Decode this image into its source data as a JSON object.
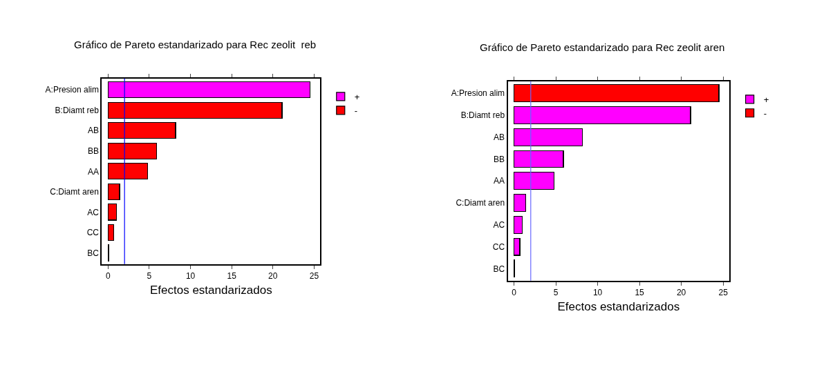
{
  "chart_data": [
    {
      "type": "bar",
      "orientation": "horizontal",
      "stacked": true,
      "title": "Gráfico de Pareto estandarizado para Rec zeolit  reb",
      "xlabel": "Efectos estandarizados",
      "categories": [
        "A:Presion alim",
        "B:Diamt reb",
        "AB",
        "BB",
        "AA",
        "C:Diamt aren",
        "AC",
        "CC",
        "BC"
      ],
      "series": [
        {
          "name": "+",
          "color": "#ff00ff",
          "values": [
            24.5,
            null,
            null,
            null,
            null,
            null,
            null,
            null,
            null
          ]
        },
        {
          "name": "-",
          "color": "#ff0000",
          "values": [
            null,
            21.1,
            8.2,
            5.9,
            4.8,
            1.4,
            1.0,
            0.7,
            0.1
          ]
        }
      ],
      "xlim": [
        -0.75,
        25.75
      ],
      "xticks": [
        0,
        5,
        10,
        15,
        20,
        25
      ],
      "ref_lines": [
        {
          "axis": "x",
          "value": 2.0,
          "color": "#0000ff"
        }
      ],
      "legend": "top right"
    },
    {
      "type": "bar",
      "orientation": "horizontal",
      "stacked": true,
      "title": "Gráfico de Pareto estandarizado para Rec zeolit aren",
      "xlabel": "Efectos estandarizados",
      "categories": [
        "A:Presion alim",
        "B:Diamt reb",
        "AB",
        "BB",
        "AA",
        "C:Diamt aren",
        "AC",
        "CC",
        "BC"
      ],
      "series": [
        {
          "name": "+",
          "color": "#ff00ff",
          "values": [
            null,
            21.1,
            8.2,
            5.9,
            4.8,
            1.4,
            1.0,
            0.7,
            0.1
          ]
        },
        {
          "name": "-",
          "color": "#ff0000",
          "values": [
            24.5,
            null,
            null,
            null,
            null,
            null,
            null,
            null,
            null
          ]
        }
      ],
      "xlim": [
        -0.75,
        25.75
      ],
      "xticks": [
        0,
        5,
        10,
        15,
        20,
        25
      ],
      "ref_lines": [
        {
          "axis": "x",
          "value": 2.0,
          "color": "#6666ff"
        }
      ],
      "legend": "top right"
    }
  ]
}
